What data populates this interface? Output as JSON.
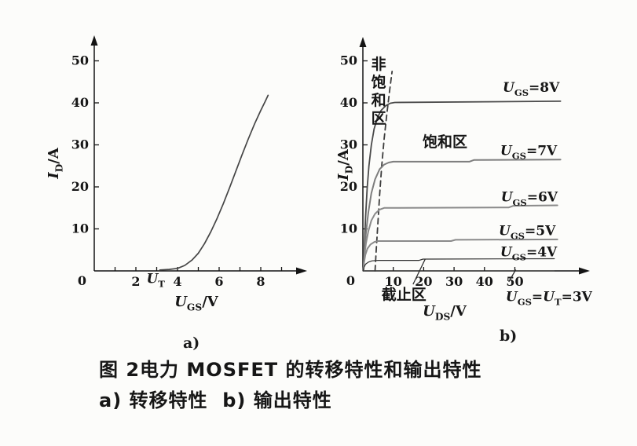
{
  "figure": {
    "caption_line1": "图 2电力 MOSFET 的转移特性和输出特性",
    "caption_line2": "a) 转移特性  b) 输出特性",
    "sublabel_a": "a)",
    "sublabel_b": "b)"
  },
  "colors": {
    "axis": "#141414",
    "text": "#161616",
    "curve_dark": "#454545",
    "curve_gray": "#868686"
  },
  "chart_data": [
    {
      "id": "a",
      "name": "transfer-characteristic",
      "type": "line",
      "xlabel": "U_{GS}/V",
      "ylabel": "I_{D}/A",
      "xlim": [
        0,
        9.8
      ],
      "ylim": [
        0,
        53
      ],
      "grid": "off",
      "legend": "none",
      "origin_label": "0",
      "xticks": [
        {
          "v": 1
        },
        {
          "v": 2,
          "label": "2"
        },
        {
          "v": 3
        },
        {
          "v": 4,
          "label": "4"
        },
        {
          "v": 5
        },
        {
          "v": 6,
          "label": "6"
        },
        {
          "v": 7
        },
        {
          "v": 8,
          "label": "8"
        },
        {
          "v": 9
        }
      ],
      "yticks": [
        {
          "v": 10,
          "label": "10"
        },
        {
          "v": 20,
          "label": "20"
        },
        {
          "v": 30,
          "label": "30"
        },
        {
          "v": 40,
          "label": "40"
        },
        {
          "v": 50,
          "label": "50"
        }
      ],
      "series": [
        {
          "name": "I_D vs U_GS (transfer curve)",
          "color": "#454545",
          "width": 1.7,
          "points": [
            [
              3.15,
              0.2
            ],
            [
              3.6,
              0.35
            ],
            [
              4,
              0.6
            ],
            [
              4.35,
              1.3
            ],
            [
              4.7,
              2.6
            ],
            [
              5,
              4.2
            ],
            [
              5.3,
              6.5
            ],
            [
              5.6,
              9.3
            ],
            [
              5.9,
              12.5
            ],
            [
              6.2,
              16
            ],
            [
              6.5,
              19.8
            ],
            [
              6.8,
              23.7
            ],
            [
              7.1,
              27.6
            ],
            [
              7.4,
              31.4
            ],
            [
              7.7,
              35
            ],
            [
              8,
              38.2
            ],
            [
              8.2,
              40.2
            ],
            [
              8.35,
              41.8
            ]
          ]
        }
      ],
      "annotations": [
        {
          "text": "U_{T}",
          "x": 2.95,
          "y": -2.9,
          "anchor": "middle"
        }
      ]
    },
    {
      "id": "b",
      "name": "output-characteristic",
      "type": "line",
      "xlabel": "U_{DS}/V",
      "ylabel": "I_{D}/A",
      "xlim": [
        0,
        60
      ],
      "ylim": [
        0,
        53
      ],
      "grid": "off",
      "legend": "none",
      "origin_label": "0",
      "xticks": [
        {
          "v": 10,
          "label": "10"
        },
        {
          "v": 20,
          "label": "20"
        },
        {
          "v": 30,
          "label": "30"
        },
        {
          "v": 40,
          "label": "40"
        },
        {
          "v": 50,
          "label": "50"
        }
      ],
      "yticks": [
        {
          "v": 10,
          "label": "10"
        },
        {
          "v": 20,
          "label": "20"
        },
        {
          "v": 30,
          "label": "30"
        },
        {
          "v": 40,
          "label": "40"
        },
        {
          "v": 50,
          "label": "50"
        }
      ],
      "series": [
        {
          "name": "saturation boundary",
          "color": "#3c3c3c",
          "width": 1.8,
          "dash": "7 5",
          "points": [
            [
              4,
              0
            ],
            [
              4.4,
              5
            ],
            [
              4.9,
              11
            ],
            [
              5.5,
              18
            ],
            [
              6.2,
              25
            ],
            [
              7,
              31.5
            ],
            [
              7.9,
              37.5
            ],
            [
              8.8,
              43
            ],
            [
              9.6,
              47.5
            ]
          ]
        },
        {
          "name": "U_{GS}=8V",
          "label": "U_{GS}=8V",
          "label_pos": [
            46,
            42.6
          ],
          "color": "#4a4a4a",
          "width": 1.8,
          "points": [
            [
              0.2,
              0
            ],
            [
              0.5,
              6
            ],
            [
              0.9,
              13
            ],
            [
              1.4,
              19.5
            ],
            [
              2,
              25
            ],
            [
              2.8,
              30
            ],
            [
              3.7,
              33.8
            ],
            [
              4.8,
              36.5
            ],
            [
              6,
              38.2
            ],
            [
              7.5,
              39.3
            ],
            [
              9,
              39.9
            ],
            [
              10.5,
              40.1
            ],
            [
              65,
              40.4
            ]
          ]
        },
        {
          "name": "U_{GS}=7V",
          "label": "U_{GS}=7V",
          "label_pos": [
            45.2,
            27.6
          ],
          "color": "#7d7d7d",
          "width": 2,
          "points": [
            [
              0.2,
              0
            ],
            [
              0.5,
              4.5
            ],
            [
              1,
              9
            ],
            [
              1.8,
              14
            ],
            [
              2.8,
              18.5
            ],
            [
              4,
              21.8
            ],
            [
              5.5,
              24.2
            ],
            [
              7,
              25.3
            ],
            [
              8.5,
              25.8
            ],
            [
              10,
              26
            ],
            [
              35,
              26
            ],
            [
              36.5,
              26.4
            ],
            [
              65,
              26.5
            ]
          ]
        },
        {
          "name": "U_{GS}=6V",
          "label": "U_{GS}=6V",
          "label_pos": [
            45.4,
            16.5
          ],
          "color": "#8a8a8a",
          "width": 2,
          "points": [
            [
              0.15,
              0
            ],
            [
              0.5,
              3.5
            ],
            [
              1,
              6.5
            ],
            [
              1.8,
              9.5
            ],
            [
              2.8,
              12
            ],
            [
              4,
              13.6
            ],
            [
              5.5,
              14.6
            ],
            [
              7,
              15
            ],
            [
              48,
              15.1
            ],
            [
              49.5,
              15.5
            ],
            [
              64,
              15.6
            ]
          ]
        },
        {
          "name": "U_{GS}=5V",
          "label": "U_{GS}=5V",
          "label_pos": [
            44.7,
            8.5
          ],
          "color": "#8a8a8a",
          "width": 2,
          "points": [
            [
              0.1,
              0
            ],
            [
              0.4,
              2
            ],
            [
              0.8,
              3.8
            ],
            [
              1.5,
              5.3
            ],
            [
              2.5,
              6.3
            ],
            [
              3.8,
              6.9
            ],
            [
              5,
              7.1
            ],
            [
              29,
              7.1
            ],
            [
              30.5,
              7.4
            ],
            [
              64,
              7.5
            ]
          ]
        },
        {
          "name": "U_{GS}=4V",
          "label": "U_{GS}=4V",
          "label_pos": [
            45.2,
            3.5
          ],
          "color": "#2f2f2f",
          "width": 1.2,
          "points": [
            [
              0.1,
              0
            ],
            [
              0.4,
              0.9
            ],
            [
              0.9,
              1.6
            ],
            [
              1.8,
              2.1
            ],
            [
              3,
              2.4
            ],
            [
              5,
              2.5
            ],
            [
              18.5,
              2.5
            ],
            [
              19.8,
              2.8
            ],
            [
              63,
              2.9
            ]
          ]
        },
        {
          "name": "U_{GS}=U_{T}=3V (on axis, zero current)",
          "color": "#333333",
          "width": 0.8,
          "points": [
            [
              0.3,
              0
            ],
            [
              63,
              0
            ]
          ]
        }
      ],
      "annotations": [
        {
          "text": "非饱和区",
          "x": 5.2,
          "y": 48,
          "vertical": true,
          "anchor": "middle"
        },
        {
          "text": "饱和区",
          "x": 27,
          "y": 29.5,
          "anchor": "middle"
        },
        {
          "text": "截止区",
          "x": 13.5,
          "y": -6.8,
          "anchor": "middle",
          "leader": [
            16.5,
            -3.2,
            20.5,
            2.8
          ]
        },
        {
          "text": "U_{GS}=U_{T}=3V",
          "x": 47,
          "y": -7.2,
          "anchor": "start",
          "leader": [
            48,
            -2.6,
            50.3,
            0.3
          ]
        }
      ]
    }
  ]
}
